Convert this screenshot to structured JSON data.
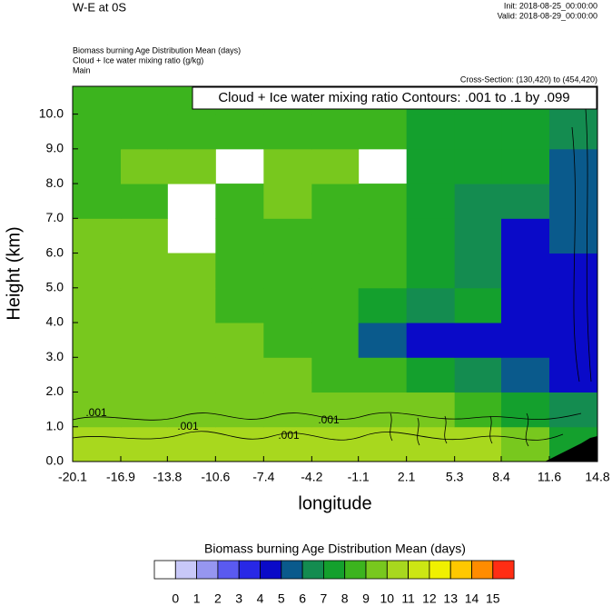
{
  "header": {
    "left": "W-E at 0S",
    "init": "Init: 2018-08-25_00:00:00",
    "valid": "Valid: 2018-08-29_00:00:00",
    "lines": [
      "Biomass burning Age Distribution Mean   (days)",
      "Cloud + Ice water mixing ratio   (g/kg)",
      "Main"
    ],
    "cross_section": "Cross-Section: (130,420) to (454,420)"
  },
  "chart_data": {
    "type": "contour",
    "annotation": "Cloud + Ice water mixing ratio Contours: .001 to .1 by .099",
    "contour_labels": [
      ".001",
      ".001",
      ".001",
      ".001"
    ],
    "x_label": "longitude",
    "y_label": "Height (km)",
    "xlim": [
      -20.1,
      14.8
    ],
    "ylim": [
      0,
      10.8
    ],
    "xticks": [
      -20.1,
      -16.9,
      -13.8,
      -10.6,
      -7.4,
      -4.2,
      -1.1,
      2.1,
      5.3,
      8.4,
      11.6,
      14.8
    ],
    "yticks": [
      {
        "value": 0,
        "label": "0.0"
      },
      {
        "value": 1,
        "label": "1.0"
      },
      {
        "value": 2,
        "label": "2.0"
      },
      {
        "value": 3,
        "label": "3.0"
      },
      {
        "value": 4,
        "label": "4.0"
      },
      {
        "value": 5,
        "label": "5.0"
      },
      {
        "value": 6,
        "label": "6.0"
      },
      {
        "value": 7,
        "label": "7.0"
      },
      {
        "value": 8,
        "label": "8.0"
      },
      {
        "value": 9,
        "label": "9.0"
      },
      {
        "value": 10,
        "label": "10.0"
      }
    ],
    "field": [
      [
        10.5,
        10.5,
        10.5,
        10.5,
        10.5,
        10.5,
        10.5,
        10.5,
        10.5,
        9.5,
        7.5
      ],
      [
        9.5,
        9.5,
        9.5,
        9.5,
        9.5,
        9.5,
        9.5,
        9.5,
        8.5,
        7.5,
        6.5
      ],
      [
        9.5,
        9.5,
        9.5,
        9.5,
        9.5,
        8.5,
        8.5,
        7.5,
        6.5,
        5.5,
        4.5
      ],
      [
        9.5,
        9.5,
        9.5,
        9.5,
        8.5,
        8.5,
        5.5,
        4.5,
        4.5,
        4.5,
        4.5
      ],
      [
        9.5,
        9.5,
        9.5,
        8.5,
        8.5,
        8.5,
        7.5,
        6.5,
        7.5,
        4.5,
        4.5
      ],
      [
        9.5,
        9.5,
        9.5,
        8.5,
        8.5,
        8.5,
        8.5,
        7.5,
        6.5,
        4.5,
        4.5
      ],
      [
        9.5,
        9.5,
        null,
        8.5,
        8.5,
        8.5,
        8.5,
        7.5,
        6.5,
        4.5,
        5.5
      ],
      [
        8.5,
        8.5,
        null,
        8.5,
        9.5,
        8.5,
        8.5,
        7.5,
        6.5,
        6.5,
        5.5
      ],
      [
        8.5,
        9.5,
        9.5,
        null,
        9.5,
        9.5,
        null,
        7.5,
        7.5,
        7.5,
        5.5
      ],
      [
        8.5,
        8.5,
        8.5,
        8.5,
        8.5,
        8.5,
        8.5,
        7.5,
        7.5,
        7.5,
        6.5
      ],
      [
        8.5,
        8.5,
        8.5,
        8.5,
        8.5,
        8.5,
        8.5,
        7.5,
        7.5,
        7.5,
        6.5
      ]
    ],
    "colorbar": {
      "title": "Biomass burning Age Distribution Mean  (days)",
      "levels": [
        0,
        1,
        2,
        3,
        4,
        5,
        6,
        7,
        8,
        9,
        10,
        11,
        12,
        13,
        14,
        15
      ],
      "colors": [
        "#ffffff",
        "#c8c8f8",
        "#9696f0",
        "#5a5af0",
        "#2828e6",
        "#0a0ac8",
        "#0a5a8c",
        "#148c50",
        "#14a02d",
        "#3cb41e",
        "#78c81e",
        "#a8d81e",
        "#cce614",
        "#f0f000",
        "#ffc800",
        "#ff8c00",
        "#ff2d14"
      ]
    }
  }
}
